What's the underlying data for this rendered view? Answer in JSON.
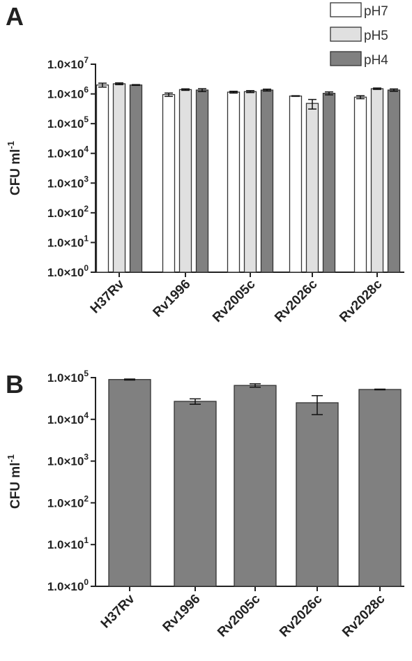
{
  "figure": {
    "colors": {
      "pH7": "#ffffff",
      "pH5": "#e0e0e0",
      "pH4": "#808080",
      "axis": "#222222",
      "stroke": "#333333"
    }
  },
  "chart_data": [
    {
      "type": "bar",
      "panel_label": "A",
      "ylabel": "CFU ml",
      "ylabel_sup": "-1",
      "yscale": "log",
      "ylim": [
        1,
        10000000
      ],
      "grid": false,
      "legend_position": "top-right",
      "yticks": [
        {
          "value": 1,
          "mant": "1.0×10",
          "exp": "0"
        },
        {
          "value": 10,
          "mant": "1.0×10",
          "exp": "1"
        },
        {
          "value": 100,
          "mant": "1.0×10",
          "exp": "2"
        },
        {
          "value": 1000,
          "mant": "1.0×10",
          "exp": "3"
        },
        {
          "value": 10000,
          "mant": "1.0×10",
          "exp": "4"
        },
        {
          "value": 100000,
          "mant": "1.0×10",
          "exp": "5"
        },
        {
          "value": 1000000,
          "mant": "1.0×10",
          "exp": "6"
        },
        {
          "value": 10000000,
          "mant": "1.0×10",
          "exp": "7"
        }
      ],
      "categories": [
        "H37Rv",
        "Rv1996",
        "Rv2005c",
        "Rv2026c",
        "Rv2028c"
      ],
      "series": [
        {
          "name": "pH7",
          "values": [
            2000000,
            950000,
            1150000,
            850000,
            780000
          ],
          "errors": [
            300000,
            120000,
            80000,
            20000,
            90000
          ]
        },
        {
          "name": "pH5",
          "values": [
            2200000,
            1400000,
            1200000,
            480000,
            1500000
          ],
          "errors": [
            150000,
            80000,
            90000,
            170000,
            80000
          ]
        },
        {
          "name": "pH4",
          "values": [
            2000000,
            1350000,
            1350000,
            1050000,
            1350000
          ],
          "errors": [
            60000,
            150000,
            100000,
            120000,
            120000
          ]
        }
      ]
    },
    {
      "type": "bar",
      "panel_label": "B",
      "ylabel": "CFU ml",
      "ylabel_sup": "-1",
      "yscale": "log",
      "ylim": [
        1,
        100000
      ],
      "grid": false,
      "yticks": [
        {
          "value": 1,
          "mant": "1.0×10",
          "exp": "0"
        },
        {
          "value": 10,
          "mant": "1.0×10",
          "exp": "1"
        },
        {
          "value": 100,
          "mant": "1.0×10",
          "exp": "2"
        },
        {
          "value": 1000,
          "mant": "1.0×10",
          "exp": "3"
        },
        {
          "value": 10000,
          "mant": "1.0×10",
          "exp": "4"
        },
        {
          "value": 100000,
          "mant": "1.0×10",
          "exp": "5"
        }
      ],
      "categories": [
        "H37Rv",
        "Rv1996",
        "Rv2005c",
        "Rv2026c",
        "Rv2028c"
      ],
      "series": [
        {
          "values": [
            90000,
            27000,
            65000,
            25000,
            52000
          ],
          "errors": [
            2500,
            4000,
            6000,
            12000,
            1000
          ]
        }
      ]
    }
  ]
}
